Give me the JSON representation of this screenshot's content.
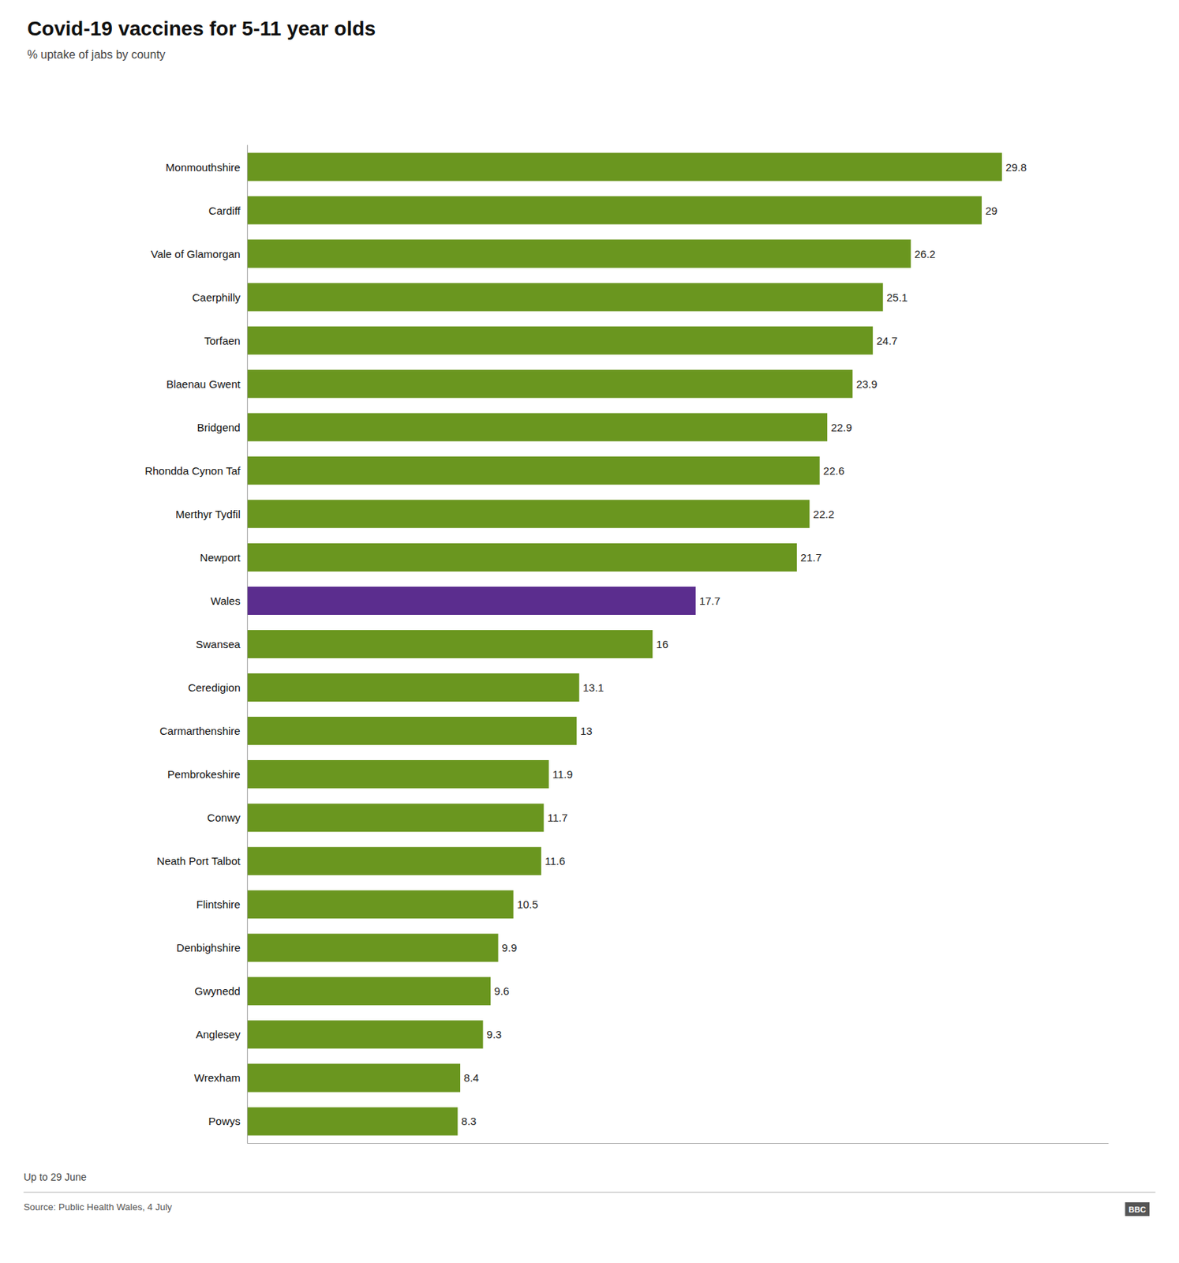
{
  "chart_data": {
    "type": "bar",
    "orientation": "horizontal",
    "title": "Covid-19 vaccines for 5-11 year olds",
    "subtitle": "% uptake of jabs by county",
    "annotations": [
      "Up to 29 June",
      "Source: Public Health Wales, 4 July",
      "BBC"
    ],
    "categories": [
      "Monmouthshire",
      "Cardiff",
      "Vale of Glamorgan",
      "Caerphilly",
      "Torfaen",
      "Blaenau Gwent",
      "Bridgend",
      "Rhondda Cynon Taf",
      "Merthyr Tydfil",
      "Newport",
      "Wales",
      "Swansea",
      "Ceredigion",
      "Carmarthenshire",
      "Pembrokeshire",
      "Conwy",
      "Neath Port Talbot",
      "Flintshire",
      "Denbighshire",
      "Gwynedd",
      "Anglesey",
      "Wrexham",
      "Powys"
    ],
    "values": [
      29.8,
      29.0,
      26.2,
      25.1,
      24.7,
      23.9,
      22.9,
      22.6,
      22.2,
      21.7,
      17.7,
      16.0,
      13.1,
      13.0,
      11.9,
      11.7,
      11.6,
      10.5,
      9.9,
      9.6,
      9.3,
      8.4,
      8.3
    ],
    "colors": [
      "#6a961f",
      "#6a961f",
      "#6a961f",
      "#6a961f",
      "#6a961f",
      "#6a961f",
      "#6a961f",
      "#6a961f",
      "#6a961f",
      "#6a961f",
      "#5b2d8e",
      "#6a961f",
      "#6a961f",
      "#6a961f",
      "#6a961f",
      "#6a961f",
      "#6a961f",
      "#6a961f",
      "#6a961f",
      "#6a961f",
      "#6a961f",
      "#6a961f",
      "#6a961f"
    ],
    "xlim": [
      0,
      34
    ],
    "data_labels": true,
    "tick_labels": "y",
    "grid": false
  }
}
